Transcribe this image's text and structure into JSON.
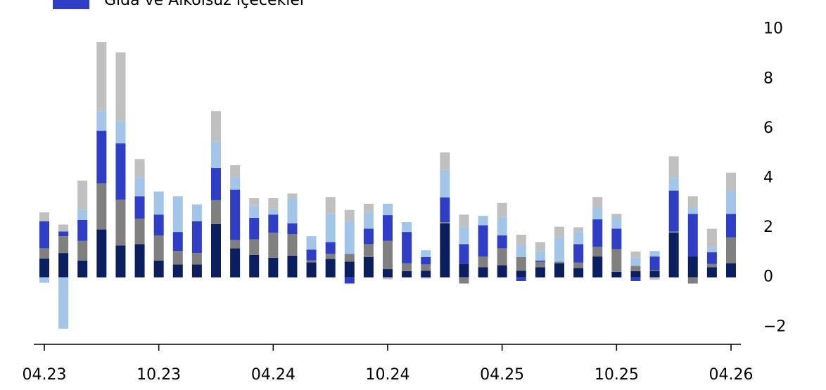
{
  "chart_data": {
    "type": "stacked_bar",
    "categories": [
      "04.23",
      null,
      null,
      null,
      null,
      null,
      "10.23",
      null,
      null,
      null,
      null,
      null,
      "04.24",
      null,
      null,
      null,
      null,
      null,
      "10.24",
      null,
      null,
      null,
      null,
      null,
      "04.25",
      null,
      null,
      null,
      null,
      null,
      "10.25",
      null,
      null,
      null,
      null,
      null,
      "04.26"
    ],
    "series": [
      {
        "color": "#0b1f5e",
        "values": [
          0.76,
          0.98,
          0.68,
          1.93,
          1.28,
          1.34,
          0.68,
          0.52,
          0.52,
          2.15,
          1.17,
          0.9,
          0.79,
          0.87,
          0.6,
          0.74,
          0.63,
          0.82,
          0.33,
          0.25,
          0.27,
          2.18,
          0.54,
          0.41,
          0.49,
          0.27,
          0.41,
          0.57,
          0.38,
          0.84,
          0.22,
          0.25,
          0.27,
          1.8,
          0.84,
          0.41,
          0.57
        ]
      },
      {
        "color": "#808080",
        "values": [
          0.41,
          0.68,
          0.79,
          1.86,
          1.85,
          1.03,
          1.01,
          0.54,
          0.46,
          0.96,
          0.33,
          0.63,
          1.01,
          0.87,
          0.08,
          0.21,
          0.32,
          0.52,
          1.14,
          0.32,
          0.25,
          0.05,
          -0.25,
          0.43,
          0.68,
          0.55,
          0.22,
          0.06,
          0.22,
          0.39,
          0.92,
          0.21,
          0.03,
          0.05,
          -0.25,
          0.13,
          1.04
        ]
      },
      {
        "name": "Gıda ve Alkolsüz İçecekler",
        "color": "#2f3ec4",
        "values": [
          1.09,
          0.19,
          0.85,
          2.12,
          2.27,
          0.9,
          0.84,
          0.77,
          1.28,
          1.3,
          2.04,
          0.87,
          0.73,
          0.44,
          0.44,
          0.47,
          -0.25,
          0.62,
          1.04,
          1.26,
          0.3,
          0.99,
          0.8,
          1.26,
          0.52,
          -0.15,
          0.05,
          0,
          0.74,
          1.11,
          0.82,
          -0.15,
          0.54,
          1.64,
          1.72,
          0.47,
          0.95
        ]
      },
      {
        "color": "#a3c5e8",
        "values": [
          -0.22,
          -2.07,
          0.4,
          0.79,
          0.89,
          0.74,
          0.93,
          1.44,
          0.68,
          1.07,
          0.49,
          0.49,
          0.22,
          1.01,
          0.54,
          1.17,
          1.31,
          0.66,
          0.46,
          0.4,
          0.27,
          1.11,
          0.7,
          0.38,
          0.76,
          0.49,
          0.38,
          0.98,
          0.49,
          0.47,
          0.44,
          0.33,
          0.22,
          0.52,
          0.25,
          0.22,
          0.93
        ]
      },
      {
        "color": "#c0c0c0",
        "values": [
          0.36,
          0.28,
          1.18,
          2.78,
          2.78,
          0.76,
          0,
          0,
          0,
          1.22,
          0.49,
          0.3,
          0.44,
          0.19,
          0,
          0.65,
          0.46,
          0.35,
          -0.08,
          0,
          -0.05,
          0.71,
          0.49,
          0,
          0.55,
          0.41,
          0.36,
          0.43,
          0.19,
          0.43,
          0.16,
          0.25,
          -0.1,
          0.87,
          0.46,
          0.73,
          0.73
        ]
      }
    ],
    "ylim": [
      -2.7,
      10.7
    ],
    "yticks": [
      {
        "value": -2,
        "label": "−2"
      },
      0,
      2,
      4,
      6,
      8,
      10
    ],
    "y_axis_side": "right",
    "legend": "upper left"
  }
}
